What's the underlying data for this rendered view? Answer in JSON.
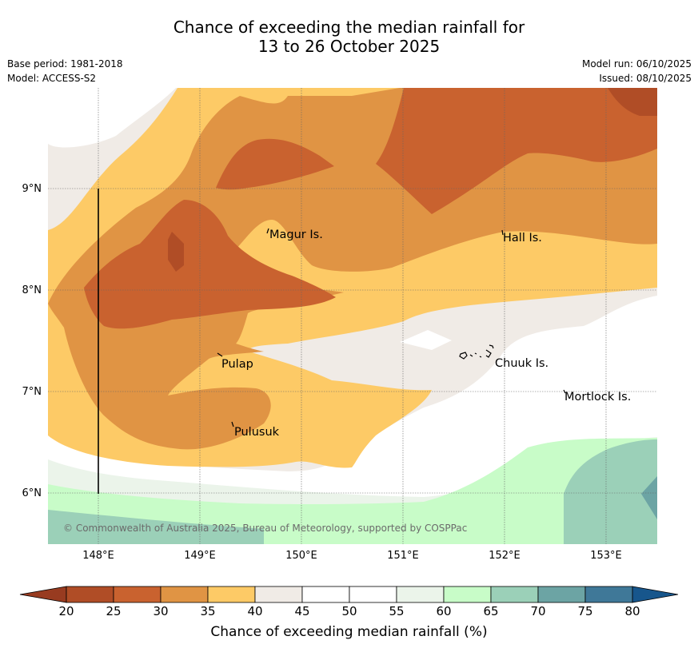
{
  "title": {
    "line1": "Chance of exceeding the median rainfall for",
    "line2": "13 to 26 October 2025"
  },
  "meta": {
    "base_period": "Base period: 1981-2018",
    "model": "Model: ACCESS-S2",
    "model_run": "Model run: 06/10/2025",
    "issued": "Issued: 08/10/2025"
  },
  "axes": {
    "lat_labels": [
      "9°N",
      "8°N",
      "7°N",
      "6°N"
    ],
    "lon_labels": [
      "148°E",
      "149°E",
      "150°E",
      "151°E",
      "152°E",
      "153°E"
    ]
  },
  "places": [
    "Magur Is.",
    "Hall Is.",
    "Pulap",
    "Chuuk Is.",
    "Mortlock Is.",
    "Pulusuk"
  ],
  "copyright": "© Commonwealth of Australia 2025, Bureau of Meteorology, supported by COSPPac",
  "colorbar": {
    "title": "Chance of exceeding median rainfall (%)",
    "ticks": [
      "20",
      "25",
      "30",
      "35",
      "40",
      "45",
      "50",
      "55",
      "60",
      "65",
      "70",
      "75",
      "80"
    ],
    "colors": [
      "#b04d26",
      "#c9622f",
      "#e09444",
      "#fdca66",
      "#f0ebe6",
      "#ffffff",
      "#ffffff",
      "#ebf4ea",
      "#c8fcc8",
      "#9bd0b8",
      "#6ca4a4",
      "#3f7898"
    ],
    "low_extend_color": "#983b20",
    "high_extend_color": "#17568c"
  }
}
